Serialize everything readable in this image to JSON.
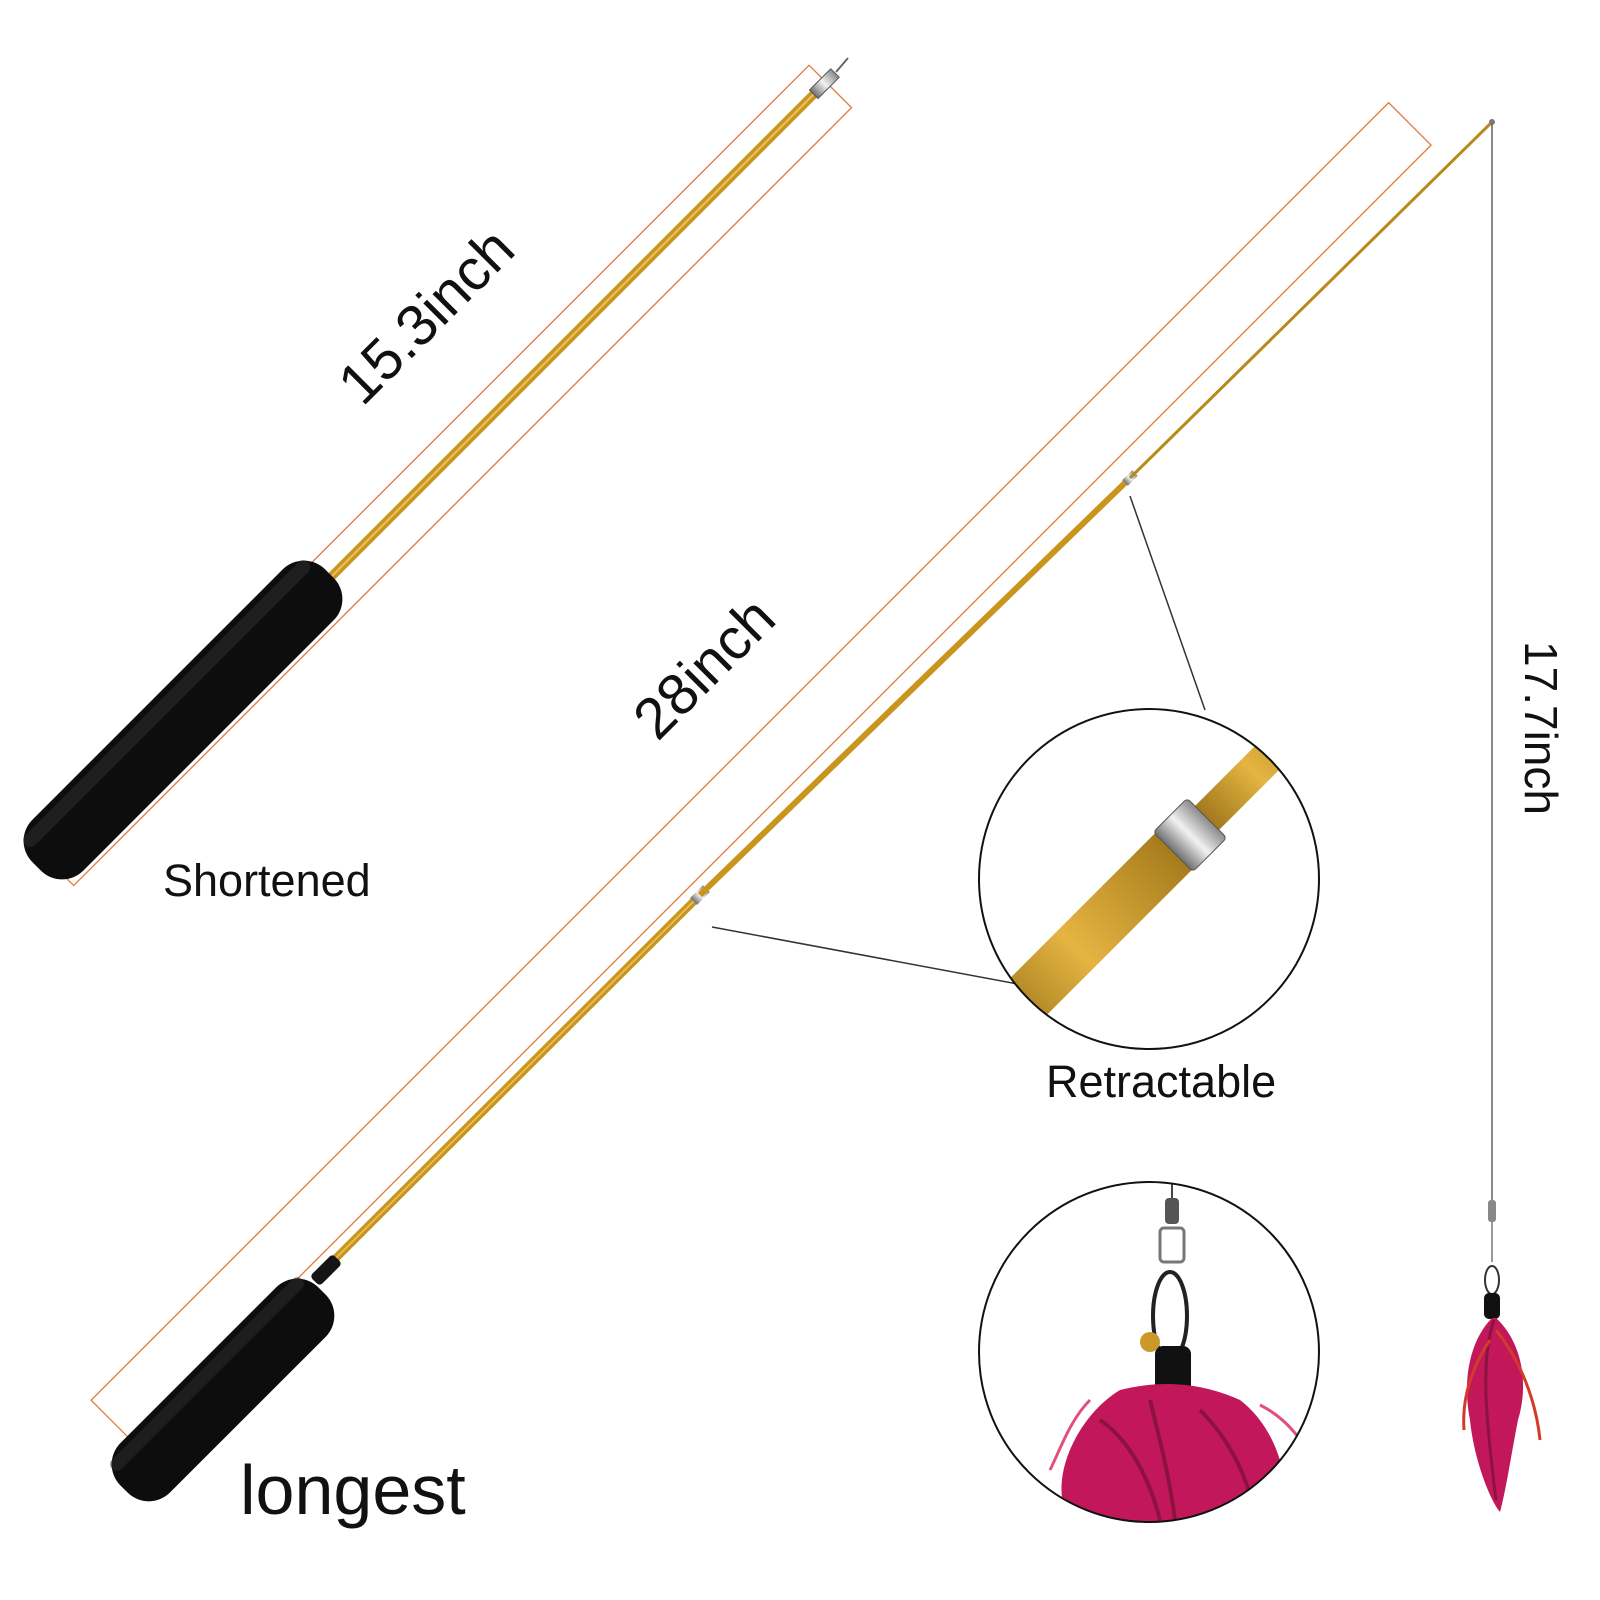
{
  "labels": {
    "short_length": "15.3inch",
    "long_length": "28inch",
    "string_length": "17.7inch",
    "shortened": "Shortened",
    "longest": "longest",
    "retractable": "Retractable"
  },
  "colors": {
    "background": "#ffffff",
    "rod_gold": "#c9951c",
    "rod_dark": "#8a6410",
    "handle": "#0d0d0d",
    "dimension_line": "#e07a3c",
    "feather": "#c2185b",
    "feather_dark": "#8e1240",
    "text": "#111111"
  }
}
